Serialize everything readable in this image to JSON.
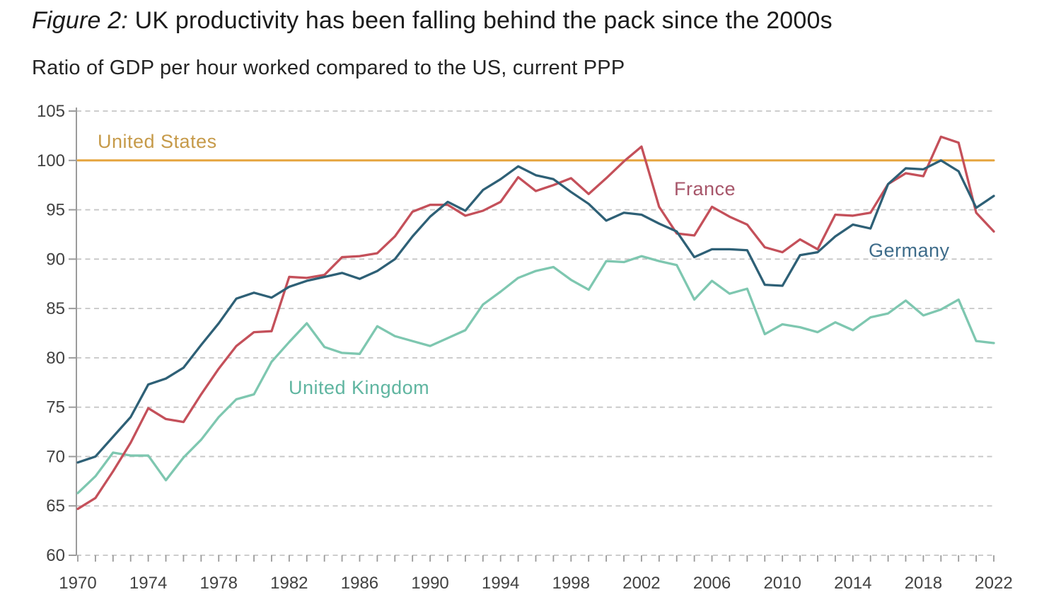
{
  "header": {
    "title_prefix": "Figure 2:",
    "title_rest": " UK productivity has been falling behind the pack since the 2000s",
    "subtitle": "Ratio of GDP per hour worked compared to the US, current PPP"
  },
  "chart_data": {
    "type": "line",
    "title": "Figure 2: UK productivity has been falling behind the pack since the 2000s",
    "subtitle": "Ratio of GDP per hour worked compared to the US, current PPP",
    "xlabel": "",
    "ylabel": "",
    "xlim": [
      1970,
      2022
    ],
    "ylim": [
      60,
      105
    ],
    "grid": "horizontal-dashed",
    "legend_position": "inline-labels-on-chart",
    "x": [
      1970,
      1971,
      1972,
      1973,
      1974,
      1975,
      1976,
      1977,
      1978,
      1979,
      1980,
      1981,
      1982,
      1983,
      1984,
      1985,
      1986,
      1987,
      1988,
      1989,
      1990,
      1991,
      1992,
      1993,
      1994,
      1995,
      1996,
      1997,
      1998,
      1999,
      2000,
      2001,
      2002,
      2003,
      2004,
      2005,
      2006,
      2007,
      2008,
      2009,
      2010,
      2011,
      2012,
      2013,
      2014,
      2015,
      2016,
      2017,
      2018,
      2019,
      2020,
      2021,
      2022
    ],
    "x_tick_labels": [
      "1970",
      "1974",
      "1978",
      "1982",
      "1986",
      "1990",
      "1994",
      "1998",
      "2002",
      "2006",
      "2010",
      "2014",
      "2018",
      "2022"
    ],
    "y_ticks": [
      "60",
      "65",
      "70",
      "75",
      "80",
      "85",
      "90",
      "95",
      "100",
      "105"
    ],
    "series": [
      {
        "name": "United States",
        "color": "#E5A53F",
        "label_color": "#C69A49",
        "values": [
          100,
          100,
          100,
          100,
          100,
          100,
          100,
          100,
          100,
          100,
          100,
          100,
          100,
          100,
          100,
          100,
          100,
          100,
          100,
          100,
          100,
          100,
          100,
          100,
          100,
          100,
          100,
          100,
          100,
          100,
          100,
          100,
          100,
          100,
          100,
          100,
          100,
          100,
          100,
          100,
          100,
          100,
          100,
          100,
          100,
          100,
          100,
          100,
          100,
          100,
          100,
          100,
          100
        ]
      },
      {
        "name": "United Kingdom",
        "color": "#7EC7B0",
        "label_color": "#5FB5A0",
        "values": [
          66.3,
          68.0,
          70.4,
          70.1,
          70.1,
          67.6,
          69.9,
          71.7,
          74.0,
          75.8,
          76.3,
          79.6,
          81.6,
          83.5,
          81.1,
          80.5,
          80.4,
          83.2,
          82.2,
          81.7,
          81.2,
          82.0,
          82.8,
          85.4,
          86.7,
          88.1,
          88.8,
          89.2,
          87.9,
          86.9,
          89.8,
          89.7,
          90.3,
          89.8,
          89.4,
          85.9,
          87.8,
          86.5,
          87.0,
          82.4,
          83.4,
          83.1,
          82.6,
          83.6,
          82.8,
          84.1,
          84.5,
          85.8,
          84.3,
          84.9,
          85.9,
          81.7,
          81.5
        ]
      },
      {
        "name": "France",
        "color": "#C4505A",
        "label_color": "#A7566A",
        "values": [
          64.7,
          65.8,
          68.5,
          71.4,
          74.9,
          73.8,
          73.5,
          76.3,
          78.9,
          81.2,
          82.6,
          82.7,
          88.2,
          88.1,
          88.4,
          90.2,
          90.3,
          90.6,
          92.3,
          94.8,
          95.5,
          95.5,
          94.4,
          94.9,
          95.8,
          98.3,
          96.9,
          97.5,
          98.2,
          96.6,
          98.2,
          99.9,
          101.4,
          95.3,
          92.6,
          92.4,
          95.3,
          94.3,
          93.5,
          91.2,
          90.7,
          92.0,
          91.0,
          94.5,
          94.4,
          94.7,
          97.6,
          98.7,
          98.4,
          102.4,
          101.8,
          94.7,
          92.8
        ]
      },
      {
        "name": "Germany",
        "color": "#2E6076",
        "label_color": "#3E6C8A",
        "values": [
          69.4,
          70.0,
          72.0,
          74.0,
          77.3,
          77.9,
          79.0,
          81.3,
          83.5,
          86.0,
          86.6,
          86.1,
          87.2,
          87.8,
          88.2,
          88.6,
          88.0,
          88.8,
          90.0,
          92.3,
          94.3,
          95.8,
          94.9,
          97.0,
          98.1,
          99.4,
          98.5,
          98.1,
          96.8,
          95.6,
          93.9,
          94.7,
          94.5,
          93.6,
          92.8,
          90.2,
          91.0,
          91.0,
          90.9,
          87.4,
          87.3,
          90.4,
          90.7,
          92.3,
          93.5,
          93.1,
          97.6,
          99.2,
          99.1,
          100.0,
          98.9,
          95.2,
          96.4
        ]
      }
    ]
  }
}
